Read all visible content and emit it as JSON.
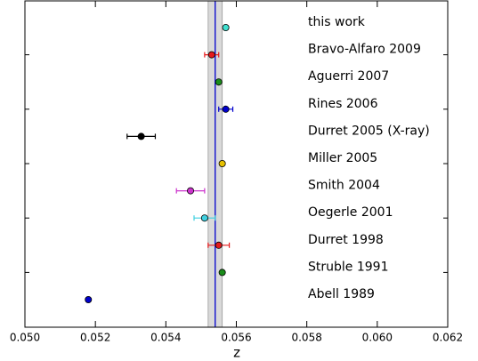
{
  "chart_data": {
    "type": "errorbar",
    "xlabel": "z",
    "categories": [
      "this work",
      "Bravo-Alfaro 2009",
      "Aguerri 2007",
      "Rines 2006",
      "Durret 2005 (X-ray)",
      "Miller 2005",
      "Smith 2004",
      "Oegerle 2001",
      "Durret 1998",
      "Struble 1991",
      "Abell 1989"
    ],
    "values": [
      0.0557,
      0.0553,
      0.0555,
      0.0557,
      0.0533,
      0.0556,
      0.0547,
      0.0551,
      0.0555,
      0.0556,
      0.0518
    ],
    "errors": [
      null,
      0.0002,
      null,
      0.0002,
      0.0004,
      null,
      0.0004,
      0.0003,
      0.0003,
      null,
      null
    ],
    "colors": [
      "#40e0d0",
      "#e41a1c",
      "#1a8c1a",
      "#0000cc",
      "#000000",
      "#e6c000",
      "#cc33cc",
      "#40d0e0",
      "#e41a1c",
      "#1a8c1a",
      "#0000cc"
    ],
    "reference_line": 0.0554,
    "reference_band": [
      0.0552,
      0.0556
    ],
    "xlim": [
      0.05,
      0.062
    ],
    "xticks": [
      {
        "value": 0.05,
        "label": "0.050"
      },
      {
        "value": 0.052,
        "label": "0.052"
      },
      {
        "value": 0.054,
        "label": "0.054"
      },
      {
        "value": 0.056,
        "label": "0.056"
      },
      {
        "value": 0.058,
        "label": "0.058"
      },
      {
        "value": 0.06,
        "label": "0.060"
      },
      {
        "value": 0.062,
        "label": "0.062"
      }
    ]
  }
}
